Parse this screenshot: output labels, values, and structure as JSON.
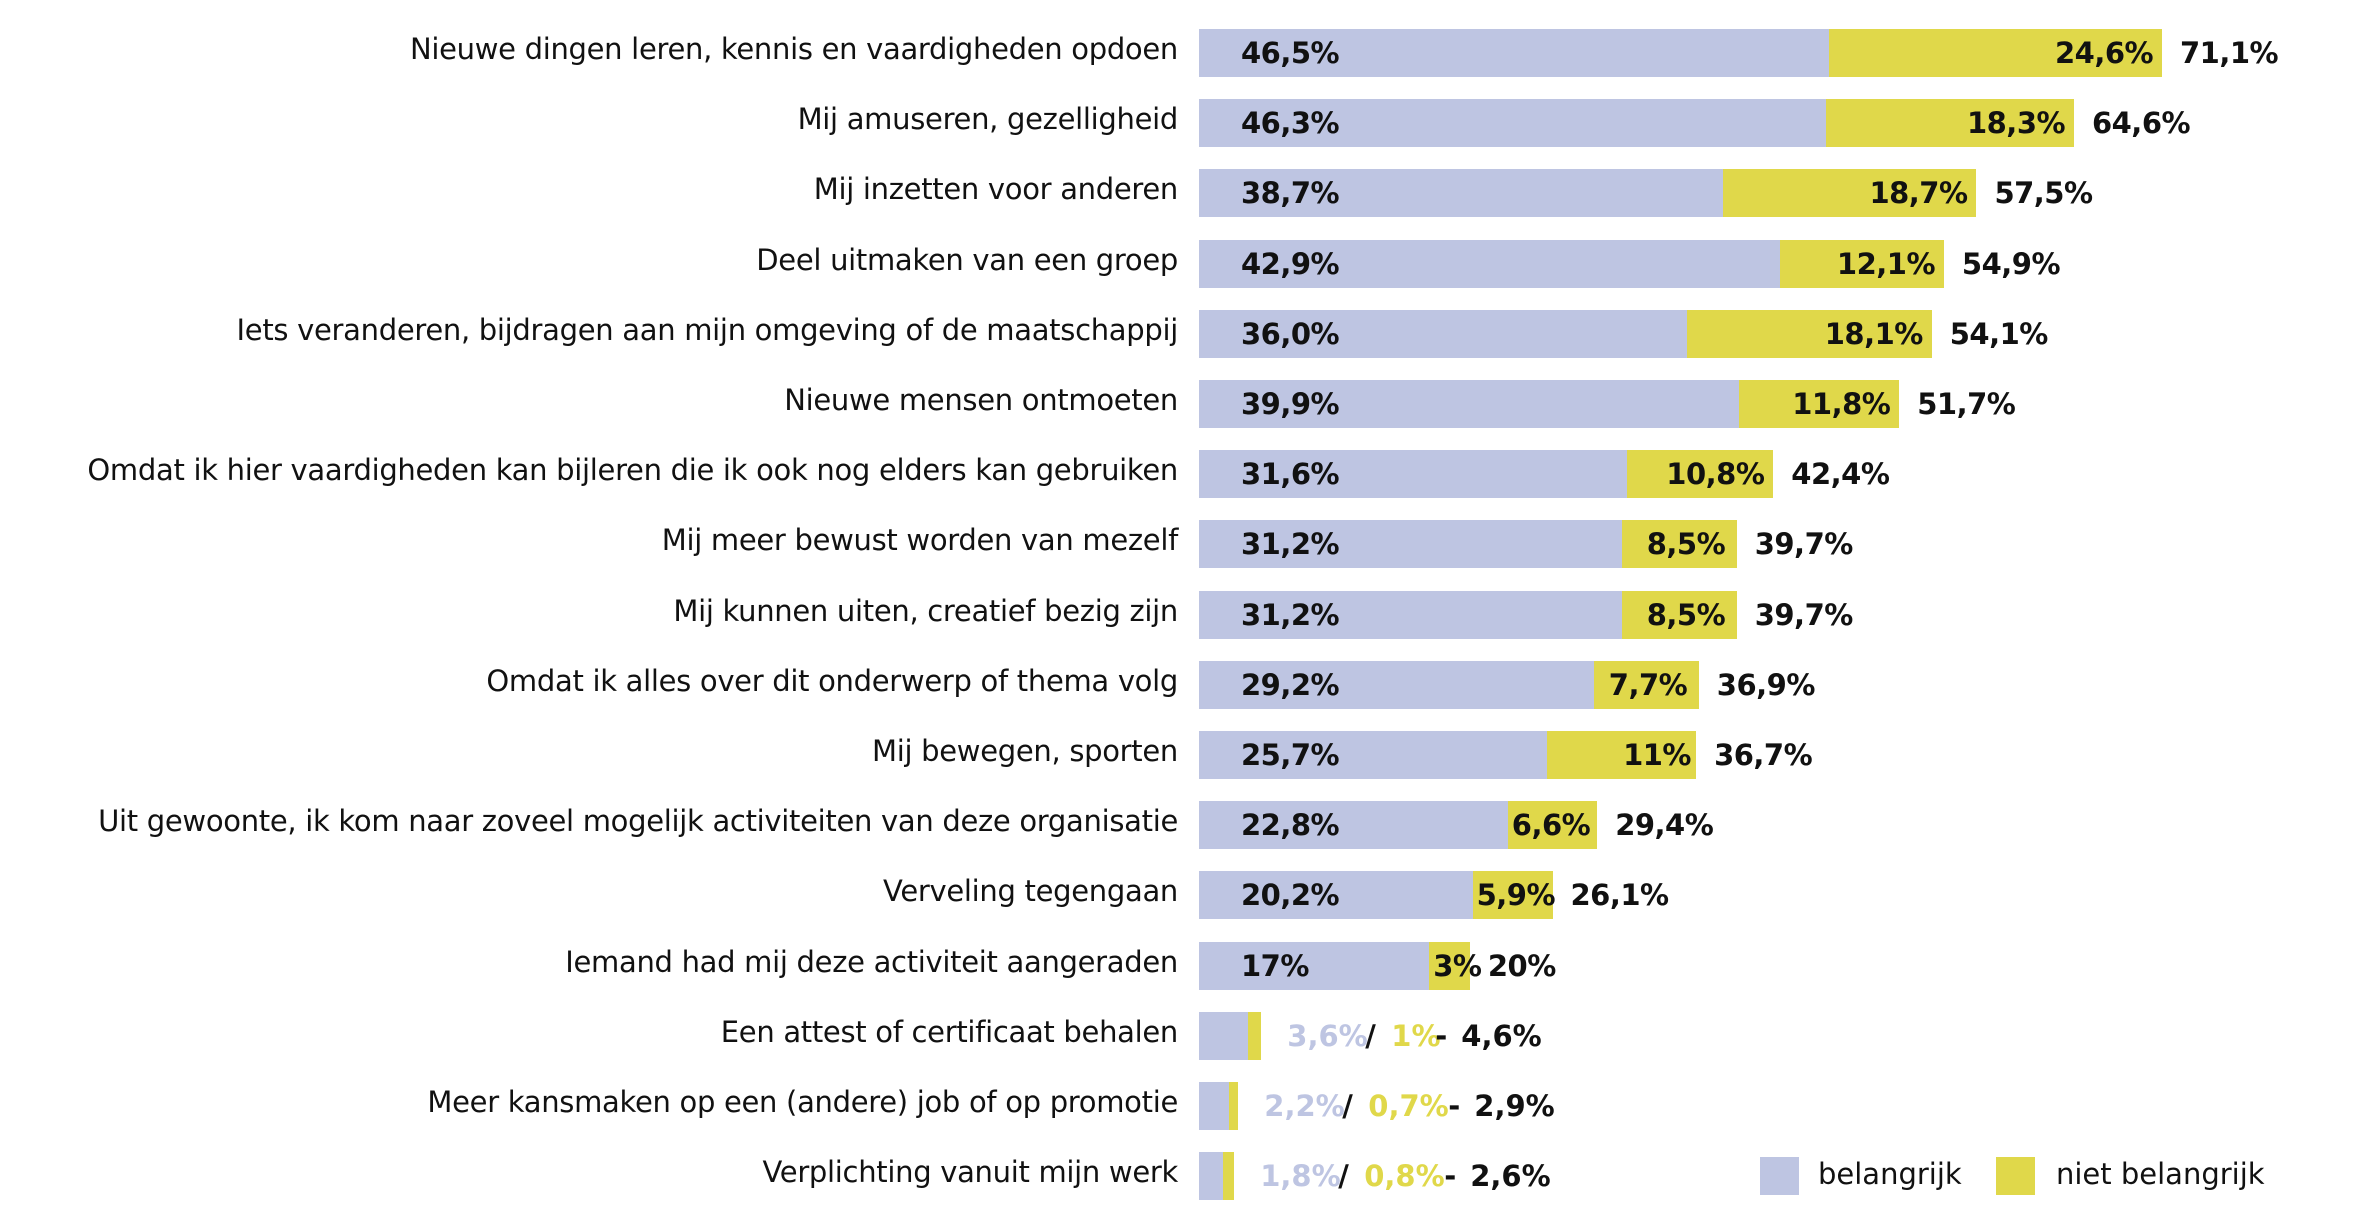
{
  "chart_data": {
    "type": "bar",
    "orientation": "horizontal",
    "stacked": true,
    "title": "",
    "xlabel": "",
    "ylabel": "",
    "xlim": [
      0,
      71.1
    ],
    "grid": false,
    "legend_position": "bottom-right",
    "colors": {
      "belangrijk": "#BEC5E2",
      "niet_belangrijk": "#E0D84A",
      "text": "#111111"
    },
    "categories": [
      "Nieuwe dingen leren, kennis en vaardigheden opdoen",
      "Mij amuseren, gezelligheid",
      "Mij inzetten voor anderen",
      "Deel uitmaken van een groep",
      "Iets veranderen, bijdragen aan mijn omgeving of de maatschappij",
      "Nieuwe mensen ontmoeten",
      "Omdat ik hier vaardigheden kan bijleren die ik ook nog elders kan gebruiken",
      "Mij meer bewust worden van mezelf",
      "Mij kunnen uiten, creatief bezig zijn",
      "Omdat ik alles over dit onderwerp of thema volg",
      "Mij bewegen, sporten",
      "Uit gewoonte, ik kom naar zoveel mogelijk activiteiten van deze organisatie",
      "Verveling tegengaan",
      "Iemand had mij deze activiteit aangeraden",
      "Een attest of certificaat behalen",
      "Meer kansmaken op een (andere) job of op promotie",
      "Verplichting vanuit mijn werk"
    ],
    "series": [
      {
        "name": "belangrijk",
        "values": [
          46.5,
          46.3,
          38.7,
          42.9,
          36.0,
          39.9,
          31.6,
          31.2,
          31.2,
          29.2,
          25.7,
          22.8,
          20.2,
          17,
          3.6,
          2.2,
          1.8
        ],
        "labels": [
          "46,5%",
          "46,3%",
          "38,7%",
          "42,9%",
          "36,0%",
          "39,9%",
          "31,6%",
          "31,2%",
          "31,2%",
          "29,2%",
          "25,7%",
          "22,8%",
          "20,2%",
          "17%",
          "3,6%",
          "2,2%",
          "1,8%"
        ]
      },
      {
        "name": "niet belangrijk",
        "values": [
          24.6,
          18.3,
          18.7,
          12.1,
          18.1,
          11.8,
          10.8,
          8.5,
          8.5,
          7.7,
          11,
          6.6,
          5.9,
          3,
          1,
          0.7,
          0.8
        ],
        "labels": [
          "24,6%",
          "18,3%",
          "18,7%",
          "12,1%",
          "18,1%",
          "11,8%",
          "10,8%",
          "8,5%",
          "8,5%",
          "7,7%",
          "11%",
          "6,6%",
          "5,9%",
          "3%",
          "1%",
          "0,7%",
          "0,8%"
        ]
      }
    ],
    "totals": [
      71.1,
      64.6,
      57.5,
      54.9,
      54.1,
      51.7,
      42.4,
      39.7,
      39.7,
      36.9,
      36.7,
      29.4,
      26.1,
      20,
      4.6,
      2.9,
      2.6
    ],
    "total_labels": [
      "71,1%",
      "64,6%",
      "57,5%",
      "54,9%",
      "54,1%",
      "51,7%",
      "42,4%",
      "39,7%",
      "39,7%",
      "36,9%",
      "36,7%",
      "29,4%",
      "26,1%",
      "20%",
      "4,6%",
      "2,9%",
      "2,6%"
    ],
    "inline_label_separator": "/",
    "inline_total_separator": "-",
    "legend": [
      "belangrijk",
      "niet belangrijk"
    ]
  }
}
